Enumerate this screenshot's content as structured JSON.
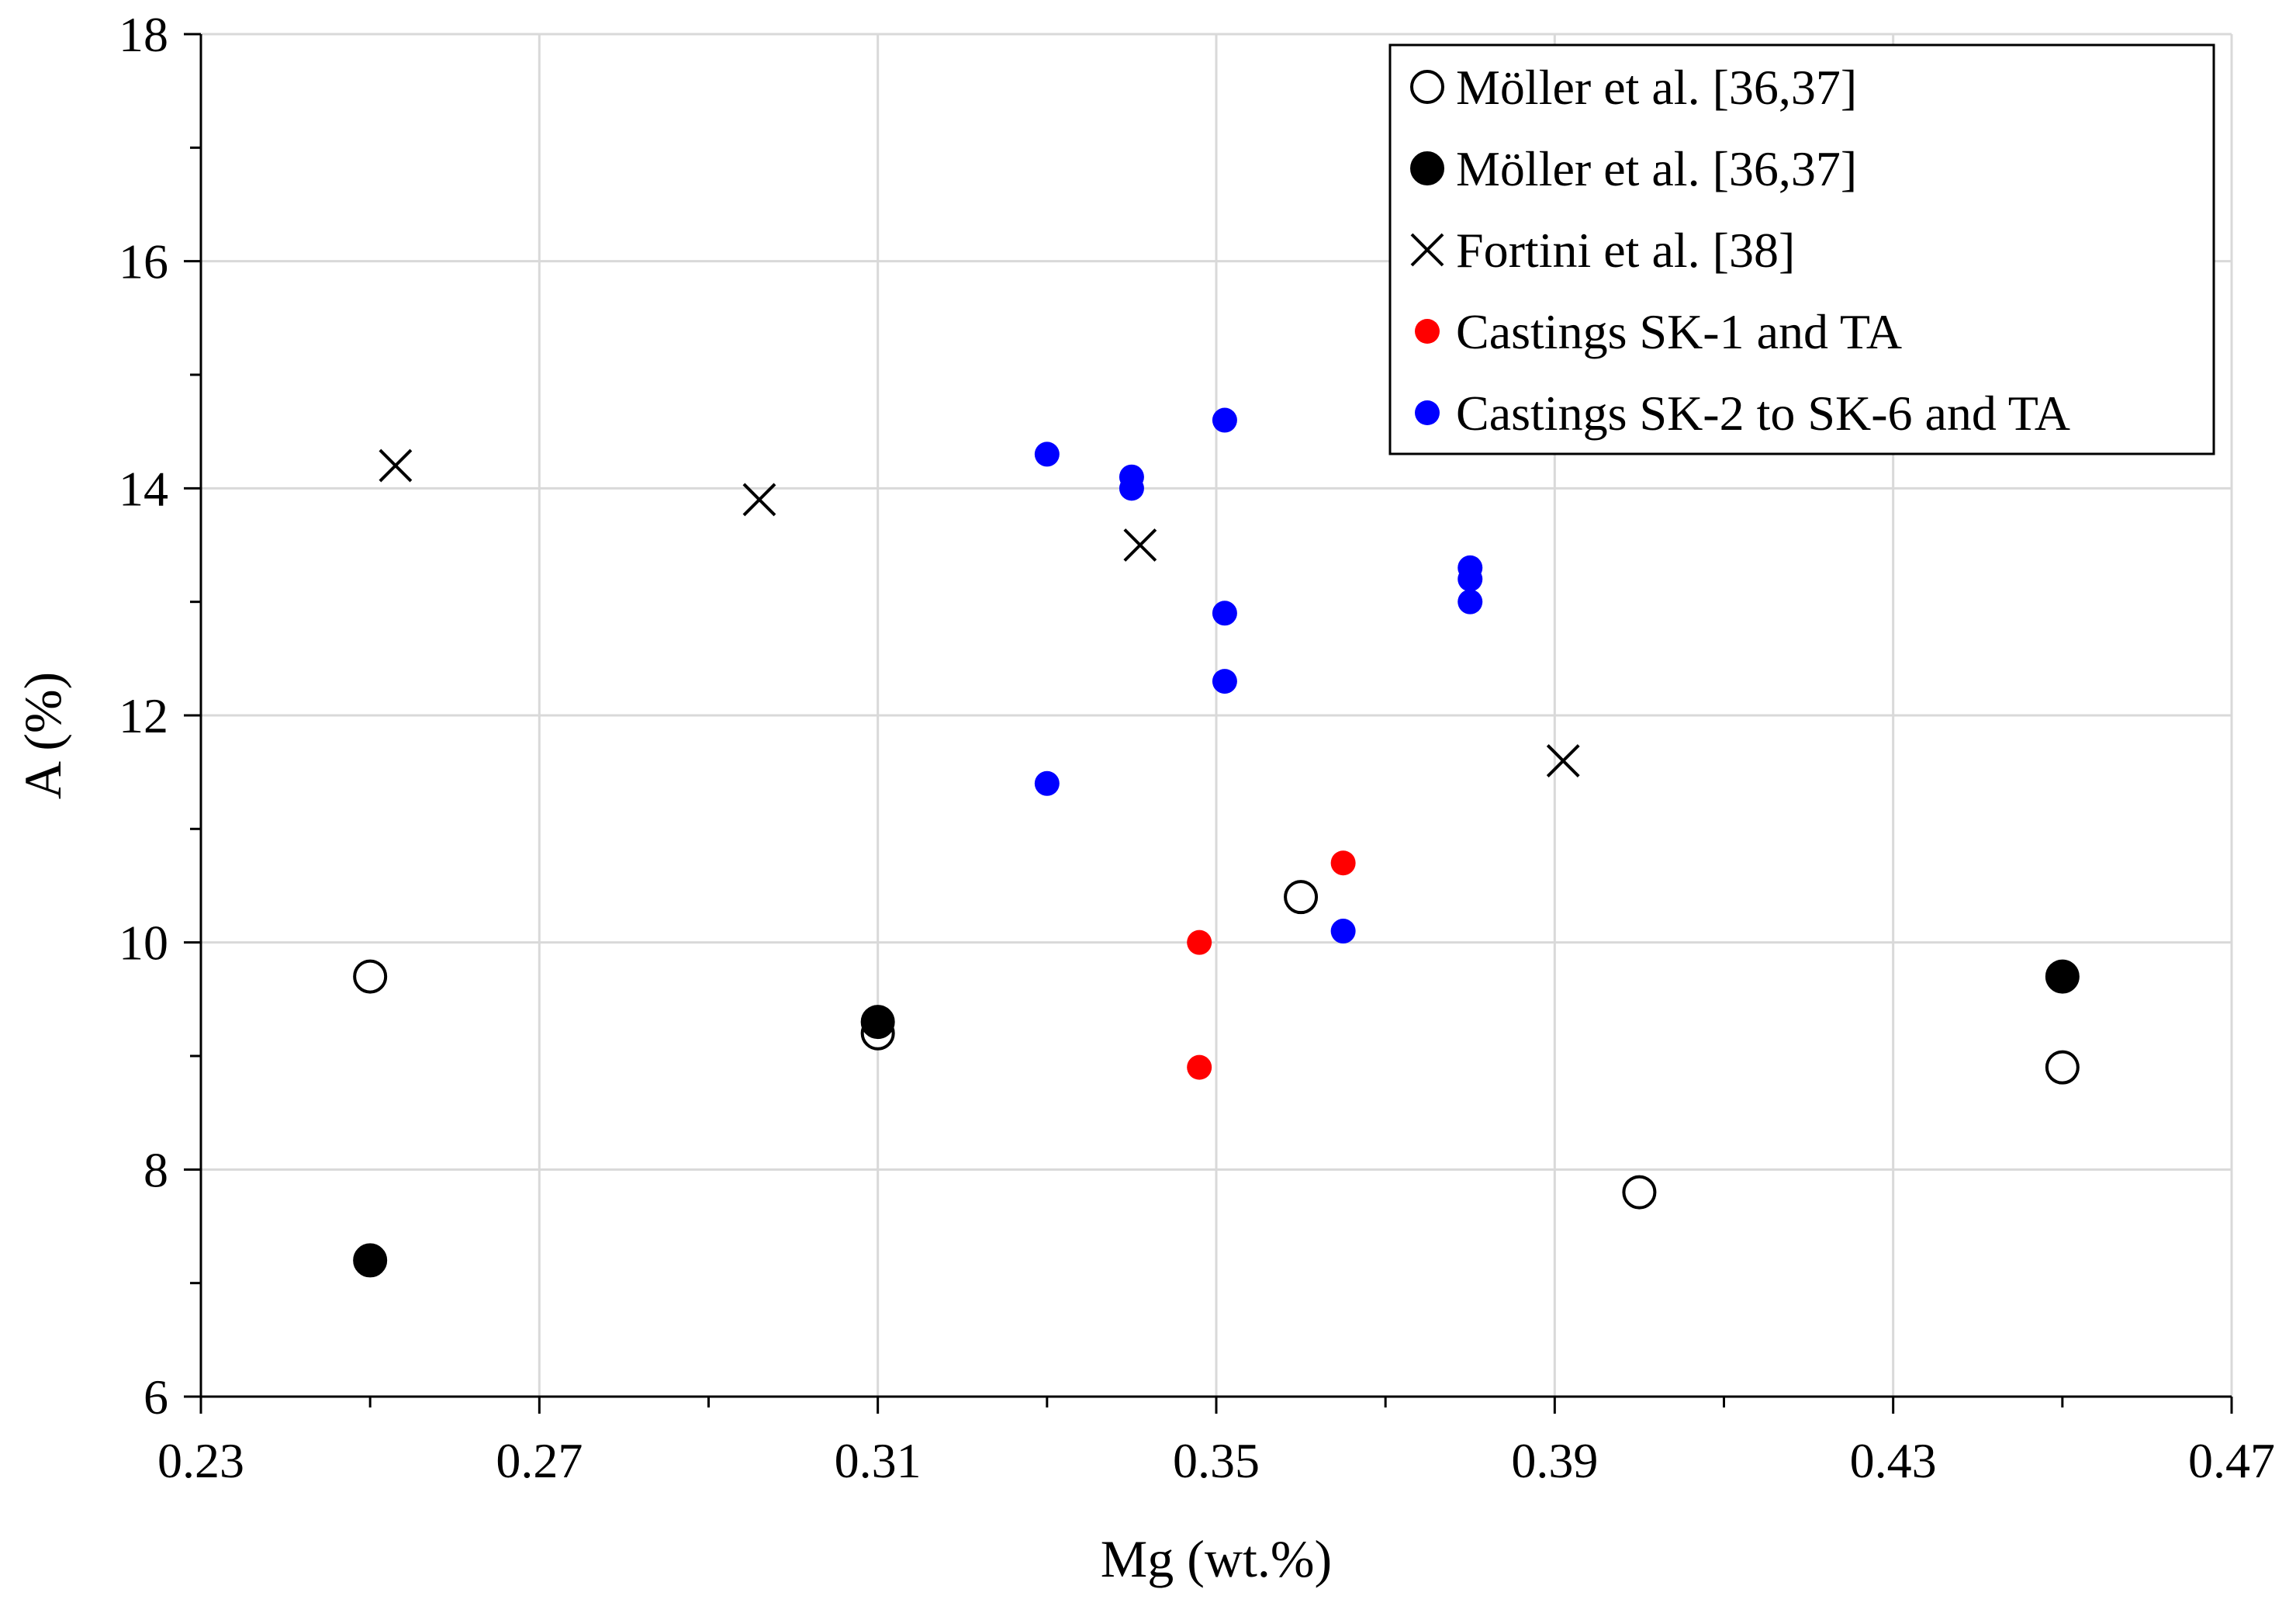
{
  "chart_data": {
    "type": "scatter",
    "title": "",
    "xlabel": "Mg (wt.%)",
    "ylabel": "A (%)",
    "xlim": [
      0.23,
      0.47
    ],
    "ylim": [
      6,
      18
    ],
    "xticks": [
      0.23,
      0.27,
      0.31,
      0.35,
      0.39,
      0.43,
      0.47
    ],
    "xtick_labels": [
      "0.23",
      "0.27",
      "0.31",
      "0.35",
      "0.39",
      "0.43",
      "0.47"
    ],
    "yticks": [
      6,
      8,
      10,
      12,
      14,
      16,
      18
    ],
    "ytick_labels": [
      "6",
      "8",
      "10",
      "12",
      "14",
      "16",
      "18"
    ],
    "x_minor_step": 0.02,
    "y_minor_step": 1,
    "grid": true,
    "legend_position": "top-right",
    "series": [
      {
        "name": "Möller et al. [36,37]",
        "marker": "open-circle",
        "color": "#000000",
        "points": [
          {
            "x": 0.25,
            "y": 9.7
          },
          {
            "x": 0.31,
            "y": 9.2
          },
          {
            "x": 0.36,
            "y": 10.4
          },
          {
            "x": 0.4,
            "y": 7.8
          },
          {
            "x": 0.45,
            "y": 8.9
          }
        ]
      },
      {
        "name": "Möller et al. [36,37]",
        "marker": "filled-circle",
        "color": "#000000",
        "points": [
          {
            "x": 0.25,
            "y": 7.2
          },
          {
            "x": 0.31,
            "y": 9.3
          },
          {
            "x": 0.45,
            "y": 9.7
          }
        ]
      },
      {
        "name": "Fortini et al. [38]",
        "marker": "cross",
        "color": "#000000",
        "points": [
          {
            "x": 0.253,
            "y": 14.2
          },
          {
            "x": 0.296,
            "y": 13.9
          },
          {
            "x": 0.341,
            "y": 13.5
          },
          {
            "x": 0.391,
            "y": 11.6
          }
        ]
      },
      {
        "name": "Castings SK-1 and TA",
        "marker": "small-dot",
        "color": "#ff0000",
        "points": [
          {
            "x": 0.348,
            "y": 10.0
          },
          {
            "x": 0.348,
            "y": 8.9
          },
          {
            "x": 0.365,
            "y": 10.7
          }
        ]
      },
      {
        "name": "Castings SK-2 to SK-6 and TA",
        "marker": "small-dot",
        "color": "#0000ff",
        "points": [
          {
            "x": 0.33,
            "y": 14.3
          },
          {
            "x": 0.33,
            "y": 11.4
          },
          {
            "x": 0.34,
            "y": 14.1
          },
          {
            "x": 0.34,
            "y": 14.0
          },
          {
            "x": 0.351,
            "y": 14.6
          },
          {
            "x": 0.351,
            "y": 12.9
          },
          {
            "x": 0.351,
            "y": 12.3
          },
          {
            "x": 0.365,
            "y": 10.1
          },
          {
            "x": 0.38,
            "y": 13.3
          },
          {
            "x": 0.38,
            "y": 13.2
          },
          {
            "x": 0.38,
            "y": 13.0
          }
        ]
      }
    ]
  }
}
